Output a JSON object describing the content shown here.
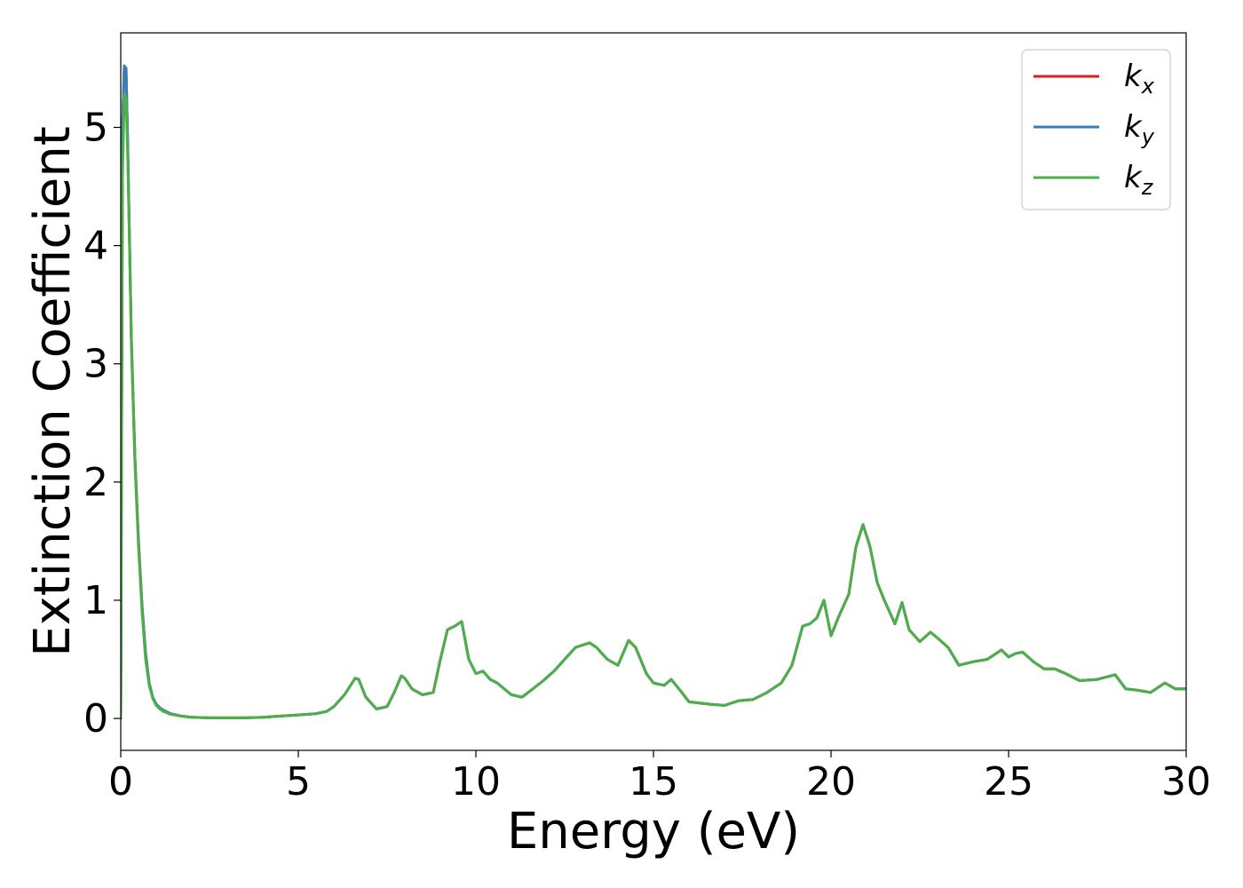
{
  "chart_data": {
    "type": "line",
    "title": "",
    "xlabel": "Energy (eV)",
    "ylabel": "Extinction Coefficient",
    "xlim": [
      0,
      30
    ],
    "ylim": [
      -0.27,
      5.8
    ],
    "xticks": [
      0,
      5,
      10,
      15,
      20,
      25,
      30
    ],
    "yticks": [
      0,
      1,
      2,
      3,
      4,
      5
    ],
    "grid": false,
    "legend_position": "top-right",
    "series": [
      {
        "name": "k_x",
        "label_main": "k",
        "label_sub": "x",
        "color": "#e41a1c",
        "x": [
          0,
          0.05,
          0.1,
          0.15,
          0.2,
          0.3,
          0.4,
          0.5,
          0.6,
          0.7,
          0.8,
          0.9,
          1.0,
          1.1,
          1.2,
          1.4,
          1.7,
          2.0,
          2.5,
          3.0,
          3.5,
          4.0,
          4.5,
          5.0,
          5.5,
          5.8,
          6.0,
          6.3,
          6.6,
          6.7,
          6.9,
          7.2,
          7.5,
          7.7,
          7.9,
          8.0,
          8.2,
          8.5,
          8.8,
          9.0,
          9.2,
          9.4,
          9.6,
          9.8,
          10.0,
          10.2,
          10.4,
          10.6,
          10.8,
          11.0,
          11.3,
          11.6,
          11.9,
          12.2,
          12.5,
          12.8,
          13.0,
          13.2,
          13.4,
          13.7,
          14.0,
          14.3,
          14.5,
          14.8,
          15.0,
          15.3,
          15.5,
          15.8,
          16.0,
          16.3,
          16.6,
          17.0,
          17.4,
          17.8,
          18.2,
          18.6,
          18.9,
          19.2,
          19.4,
          19.6,
          19.8,
          20.0,
          20.2,
          20.5,
          20.7,
          20.9,
          21.1,
          21.3,
          21.5,
          21.8,
          22.0,
          22.2,
          22.5,
          22.8,
          23.0,
          23.3,
          23.6,
          24.0,
          24.4,
          24.8,
          25.0,
          25.2,
          25.4,
          25.7,
          26.0,
          26.3,
          26.6,
          27.0,
          27.5,
          28.0,
          28.3,
          28.6,
          29.0,
          29.4,
          29.7,
          30.0
        ],
        "values": [
          0,
          5.0,
          5.52,
          5.5,
          4.8,
          3.2,
          2.2,
          1.5,
          0.95,
          0.55,
          0.3,
          0.18,
          0.12,
          0.09,
          0.07,
          0.04,
          0.02,
          0.01,
          0.005,
          0.005,
          0.005,
          0.01,
          0.02,
          0.03,
          0.04,
          0.06,
          0.1,
          0.2,
          0.34,
          0.33,
          0.18,
          0.08,
          0.1,
          0.22,
          0.36,
          0.34,
          0.25,
          0.2,
          0.22,
          0.5,
          0.75,
          0.78,
          0.82,
          0.5,
          0.38,
          0.4,
          0.33,
          0.3,
          0.25,
          0.2,
          0.18,
          0.25,
          0.32,
          0.4,
          0.5,
          0.6,
          0.62,
          0.64,
          0.6,
          0.5,
          0.45,
          0.66,
          0.6,
          0.38,
          0.3,
          0.28,
          0.33,
          0.22,
          0.14,
          0.13,
          0.12,
          0.11,
          0.15,
          0.16,
          0.22,
          0.3,
          0.45,
          0.78,
          0.8,
          0.85,
          1.0,
          0.7,
          0.85,
          1.05,
          1.45,
          1.64,
          1.45,
          1.15,
          1.0,
          0.8,
          0.98,
          0.75,
          0.65,
          0.73,
          0.68,
          0.6,
          0.45,
          0.48,
          0.5,
          0.58,
          0.52,
          0.55,
          0.56,
          0.48,
          0.42,
          0.42,
          0.38,
          0.32,
          0.33,
          0.37,
          0.25,
          0.24,
          0.22,
          0.3,
          0.25,
          0.25
        ]
      },
      {
        "name": "k_y",
        "label_main": "k",
        "label_sub": "y",
        "color": "#377eb8",
        "x": [
          0,
          0.05,
          0.1,
          0.15,
          0.2,
          0.3,
          0.4,
          0.5,
          0.6,
          0.7,
          0.8,
          0.9,
          1.0,
          1.1,
          1.2,
          1.4,
          1.7,
          2.0,
          2.5,
          3.0,
          3.5,
          4.0,
          4.5,
          5.0,
          5.5,
          5.8,
          6.0,
          6.3,
          6.6,
          6.7,
          6.9,
          7.2,
          7.5,
          7.7,
          7.9,
          8.0,
          8.2,
          8.5,
          8.8,
          9.0,
          9.2,
          9.4,
          9.6,
          9.8,
          10.0,
          10.2,
          10.4,
          10.6,
          10.8,
          11.0,
          11.3,
          11.6,
          11.9,
          12.2,
          12.5,
          12.8,
          13.0,
          13.2,
          13.4,
          13.7,
          14.0,
          14.3,
          14.5,
          14.8,
          15.0,
          15.3,
          15.5,
          15.8,
          16.0,
          16.3,
          16.6,
          17.0,
          17.4,
          17.8,
          18.2,
          18.6,
          18.9,
          19.2,
          19.4,
          19.6,
          19.8,
          20.0,
          20.2,
          20.5,
          20.7,
          20.9,
          21.1,
          21.3,
          21.5,
          21.8,
          22.0,
          22.2,
          22.5,
          22.8,
          23.0,
          23.3,
          23.6,
          24.0,
          24.4,
          24.8,
          25.0,
          25.2,
          25.4,
          25.7,
          26.0,
          26.3,
          26.6,
          27.0,
          27.5,
          28.0,
          28.3,
          28.6,
          29.0,
          29.4,
          29.7,
          30.0
        ],
        "values": [
          0,
          5.0,
          5.52,
          5.5,
          4.8,
          3.2,
          2.2,
          1.5,
          0.95,
          0.55,
          0.3,
          0.18,
          0.12,
          0.09,
          0.07,
          0.04,
          0.02,
          0.01,
          0.005,
          0.005,
          0.005,
          0.01,
          0.02,
          0.03,
          0.04,
          0.06,
          0.1,
          0.2,
          0.34,
          0.33,
          0.18,
          0.08,
          0.1,
          0.22,
          0.36,
          0.34,
          0.25,
          0.2,
          0.22,
          0.5,
          0.75,
          0.78,
          0.82,
          0.5,
          0.38,
          0.4,
          0.33,
          0.3,
          0.25,
          0.2,
          0.18,
          0.25,
          0.32,
          0.4,
          0.5,
          0.6,
          0.62,
          0.64,
          0.6,
          0.5,
          0.45,
          0.66,
          0.6,
          0.38,
          0.3,
          0.28,
          0.33,
          0.22,
          0.14,
          0.13,
          0.12,
          0.11,
          0.15,
          0.16,
          0.22,
          0.3,
          0.45,
          0.78,
          0.8,
          0.85,
          1.0,
          0.7,
          0.85,
          1.05,
          1.45,
          1.64,
          1.45,
          1.15,
          1.0,
          0.8,
          0.98,
          0.75,
          0.65,
          0.73,
          0.68,
          0.6,
          0.45,
          0.48,
          0.5,
          0.58,
          0.52,
          0.55,
          0.56,
          0.48,
          0.42,
          0.42,
          0.38,
          0.32,
          0.33,
          0.37,
          0.25,
          0.24,
          0.22,
          0.3,
          0.25,
          0.25
        ]
      },
      {
        "name": "k_z",
        "label_main": "k",
        "label_sub": "z",
        "color": "#4daf4a",
        "x": [
          0,
          0.05,
          0.1,
          0.15,
          0.2,
          0.3,
          0.4,
          0.5,
          0.6,
          0.7,
          0.8,
          0.9,
          1.0,
          1.1,
          1.2,
          1.4,
          1.7,
          2.0,
          2.5,
          3.0,
          3.5,
          4.0,
          4.5,
          5.0,
          5.5,
          5.8,
          6.0,
          6.3,
          6.6,
          6.7,
          6.9,
          7.2,
          7.5,
          7.7,
          7.9,
          8.0,
          8.2,
          8.5,
          8.8,
          9.0,
          9.2,
          9.4,
          9.6,
          9.8,
          10.0,
          10.2,
          10.4,
          10.6,
          10.8,
          11.0,
          11.3,
          11.6,
          11.9,
          12.2,
          12.5,
          12.8,
          13.0,
          13.2,
          13.4,
          13.7,
          14.0,
          14.3,
          14.5,
          14.8,
          15.0,
          15.3,
          15.5,
          15.8,
          16.0,
          16.3,
          16.6,
          17.0,
          17.4,
          17.8,
          18.2,
          18.6,
          18.9,
          19.2,
          19.4,
          19.6,
          19.8,
          20.0,
          20.2,
          20.5,
          20.7,
          20.9,
          21.1,
          21.3,
          21.5,
          21.8,
          22.0,
          22.2,
          22.5,
          22.8,
          23.0,
          23.3,
          23.6,
          24.0,
          24.4,
          24.8,
          25.0,
          25.2,
          25.4,
          25.7,
          26.0,
          26.3,
          26.6,
          27.0,
          27.5,
          28.0,
          28.3,
          28.6,
          29.0,
          29.4,
          29.7,
          30.0
        ],
        "values": [
          0,
          4.6,
          5.28,
          5.25,
          4.7,
          3.15,
          2.15,
          1.45,
          0.9,
          0.5,
          0.28,
          0.17,
          0.11,
          0.08,
          0.06,
          0.035,
          0.02,
          0.01,
          0.005,
          0.005,
          0.005,
          0.01,
          0.02,
          0.03,
          0.04,
          0.06,
          0.1,
          0.2,
          0.34,
          0.33,
          0.18,
          0.08,
          0.1,
          0.22,
          0.36,
          0.34,
          0.25,
          0.2,
          0.22,
          0.5,
          0.75,
          0.78,
          0.82,
          0.5,
          0.38,
          0.4,
          0.33,
          0.3,
          0.25,
          0.2,
          0.18,
          0.25,
          0.32,
          0.4,
          0.5,
          0.6,
          0.62,
          0.64,
          0.6,
          0.5,
          0.45,
          0.66,
          0.6,
          0.38,
          0.3,
          0.28,
          0.33,
          0.22,
          0.14,
          0.13,
          0.12,
          0.11,
          0.15,
          0.16,
          0.22,
          0.3,
          0.45,
          0.78,
          0.8,
          0.85,
          1.0,
          0.7,
          0.85,
          1.05,
          1.45,
          1.64,
          1.45,
          1.15,
          1.0,
          0.8,
          0.98,
          0.75,
          0.65,
          0.73,
          0.68,
          0.6,
          0.45,
          0.48,
          0.5,
          0.58,
          0.52,
          0.55,
          0.56,
          0.48,
          0.42,
          0.42,
          0.38,
          0.32,
          0.33,
          0.37,
          0.25,
          0.24,
          0.22,
          0.3,
          0.25,
          0.25
        ]
      }
    ]
  }
}
